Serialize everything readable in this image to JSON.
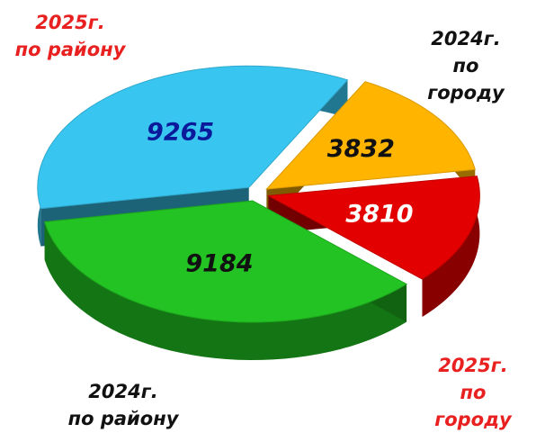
{
  "chart_data": {
    "type": "pie",
    "categories": [
      "2025г.\nпо району",
      "2024г.\nпо городу",
      "2025г.\nпо городу",
      "2024г.\nпо району"
    ],
    "values": [
      9265,
      3832,
      3810,
      9184
    ],
    "colors": [
      "#38c6f0",
      "#ffb400",
      "#e30000",
      "#22c322"
    ],
    "label_colors": [
      "#0a1a9a",
      "#111111",
      "#ffffff",
      "#111111"
    ],
    "category_colors": [
      "#e82020",
      "#111111",
      "#e82020",
      "#111111"
    ]
  }
}
